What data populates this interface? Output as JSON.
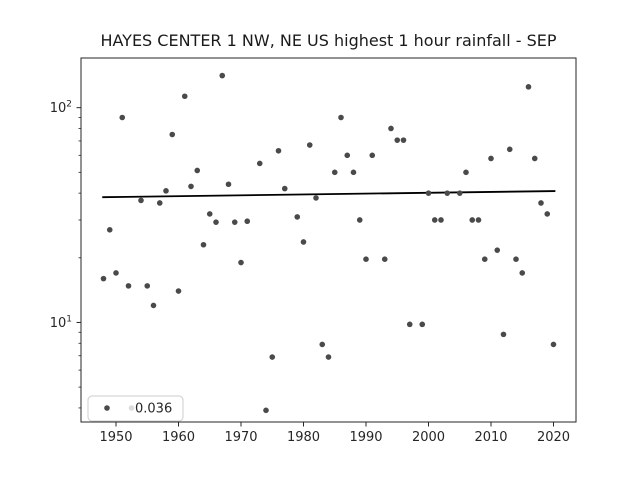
{
  "chart_data": {
    "type": "scatter",
    "title": "HAYES CENTER 1 NW, NE US highest 1 hour rainfall - SEP",
    "xlabel": "",
    "ylabel": "",
    "x_scale": "linear",
    "y_scale": "log",
    "xlim": [
      1944.4,
      2023.6
    ],
    "ylim": [
      3.44,
      170.3
    ],
    "grid": false,
    "x_ticks": [
      1950,
      1960,
      1970,
      1980,
      1990,
      2000,
      2010,
      2020
    ],
    "x_tick_labels": [
      "1950",
      "1960",
      "1970",
      "1980",
      "1990",
      "2000",
      "2010",
      "2020"
    ],
    "y_major_ticks": [
      {
        "value": 10,
        "mantissa": "10",
        "exponent": "1"
      },
      {
        "value": 100,
        "mantissa": "10",
        "exponent": "2"
      }
    ],
    "y_minor_ticks": [
      4,
      5,
      6,
      7,
      8,
      9,
      20,
      30,
      40,
      50,
      60,
      70,
      80,
      90
    ],
    "points": [
      {
        "x": 1948,
        "y": 16
      },
      {
        "x": 1949,
        "y": 27
      },
      {
        "x": 1950,
        "y": 17
      },
      {
        "x": 1951,
        "y": 90
      },
      {
        "x": 1952,
        "y": 14.8
      },
      {
        "x": 1954,
        "y": 37
      },
      {
        "x": 1955,
        "y": 14.8
      },
      {
        "x": 1956,
        "y": 12
      },
      {
        "x": 1957,
        "y": 36
      },
      {
        "x": 1958,
        "y": 41
      },
      {
        "x": 1959,
        "y": 75
      },
      {
        "x": 1960,
        "y": 14
      },
      {
        "x": 1961,
        "y": 113
      },
      {
        "x": 1962,
        "y": 43
      },
      {
        "x": 1963,
        "y": 51
      },
      {
        "x": 1964,
        "y": 23
      },
      {
        "x": 1965,
        "y": 32
      },
      {
        "x": 1966,
        "y": 29.3
      },
      {
        "x": 1967,
        "y": 141
      },
      {
        "x": 1968,
        "y": 44
      },
      {
        "x": 1969,
        "y": 29.3
      },
      {
        "x": 1970,
        "y": 19
      },
      {
        "x": 1971,
        "y": 29.6
      },
      {
        "x": 1973,
        "y": 55
      },
      {
        "x": 1974,
        "y": 3.9
      },
      {
        "x": 1975,
        "y": 6.9
      },
      {
        "x": 1976,
        "y": 63
      },
      {
        "x": 1977,
        "y": 42
      },
      {
        "x": 1979,
        "y": 31
      },
      {
        "x": 1980,
        "y": 23.7
      },
      {
        "x": 1981,
        "y": 67
      },
      {
        "x": 1982,
        "y": 38
      },
      {
        "x": 1983,
        "y": 7.9
      },
      {
        "x": 1984,
        "y": 6.9
      },
      {
        "x": 1985,
        "y": 50
      },
      {
        "x": 1986,
        "y": 90
      },
      {
        "x": 1987,
        "y": 60
      },
      {
        "x": 1988,
        "y": 50
      },
      {
        "x": 1989,
        "y": 30
      },
      {
        "x": 1990,
        "y": 19.7
      },
      {
        "x": 1991,
        "y": 60
      },
      {
        "x": 1993,
        "y": 19.7
      },
      {
        "x": 1994,
        "y": 80
      },
      {
        "x": 1995,
        "y": 70.6
      },
      {
        "x": 1996,
        "y": 70.6
      },
      {
        "x": 1997,
        "y": 9.8
      },
      {
        "x": 1999,
        "y": 9.8
      },
      {
        "x": 2000,
        "y": 40
      },
      {
        "x": 2001,
        "y": 30
      },
      {
        "x": 2002,
        "y": 30
      },
      {
        "x": 2003,
        "y": 40
      },
      {
        "x": 2005,
        "y": 40
      },
      {
        "x": 2006,
        "y": 50
      },
      {
        "x": 2007,
        "y": 30
      },
      {
        "x": 2008,
        "y": 30
      },
      {
        "x": 2009,
        "y": 19.7
      },
      {
        "x": 2010,
        "y": 58
      },
      {
        "x": 2011,
        "y": 21.7
      },
      {
        "x": 2012,
        "y": 8.8
      },
      {
        "x": 2013,
        "y": 64
      },
      {
        "x": 2014,
        "y": 19.7
      },
      {
        "x": 2015,
        "y": 17
      },
      {
        "x": 2016,
        "y": 125
      },
      {
        "x": 2017,
        "y": 58
      },
      {
        "x": 2018,
        "y": 36
      },
      {
        "x": 2019,
        "y": 32
      },
      {
        "x": 2020,
        "y": 7.9
      }
    ],
    "trend": {
      "x1": 1947.8,
      "y1": 38.3,
      "x2": 2020.3,
      "y2": 40.9
    },
    "legend": {
      "label": "0.036",
      "position": "lower left"
    },
    "colors": {
      "marker": "#4a4a4a",
      "trend_line": "#000000",
      "spine": "#262626",
      "tick_text": "#262626",
      "legend_border": "#cccccc",
      "legend_ghost_marker": "#dcdcdc",
      "background": "#ffffff"
    }
  }
}
